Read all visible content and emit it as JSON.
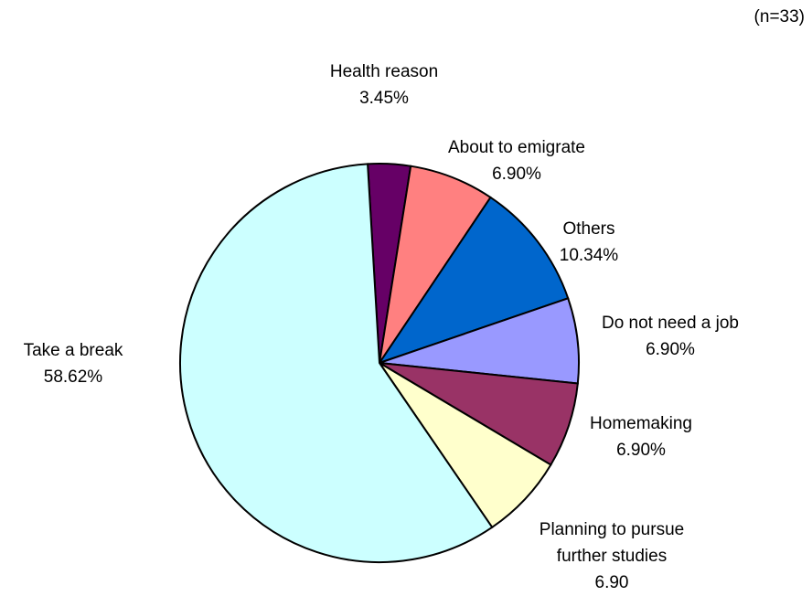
{
  "sample_note": "(n=33)",
  "chart_data": {
    "type": "pie",
    "title": "",
    "slices": [
      {
        "label": "Health reason",
        "value_label": "3.45%",
        "value": 3.45,
        "color": "#660066"
      },
      {
        "label": "About to emigrate",
        "value_label": "6.90%",
        "value": 6.9,
        "color": "#ff8080"
      },
      {
        "label": "Others",
        "value_label": "10.34%",
        "value": 10.34,
        "color": "#0066cc"
      },
      {
        "label": "Do not need a job",
        "value_label": "6.90%",
        "value": 6.9,
        "color": "#9999ff"
      },
      {
        "label": "Homemaking",
        "value_label": "6.90%",
        "value": 6.9,
        "color": "#993366"
      },
      {
        "label": "Planning to pursue further studies",
        "value_label": "6.90",
        "value": 6.9,
        "color": "#ffffcc"
      },
      {
        "label": "Take a break",
        "value_label": "58.62%",
        "value": 58.62,
        "color": "#ccffff"
      }
    ]
  }
}
